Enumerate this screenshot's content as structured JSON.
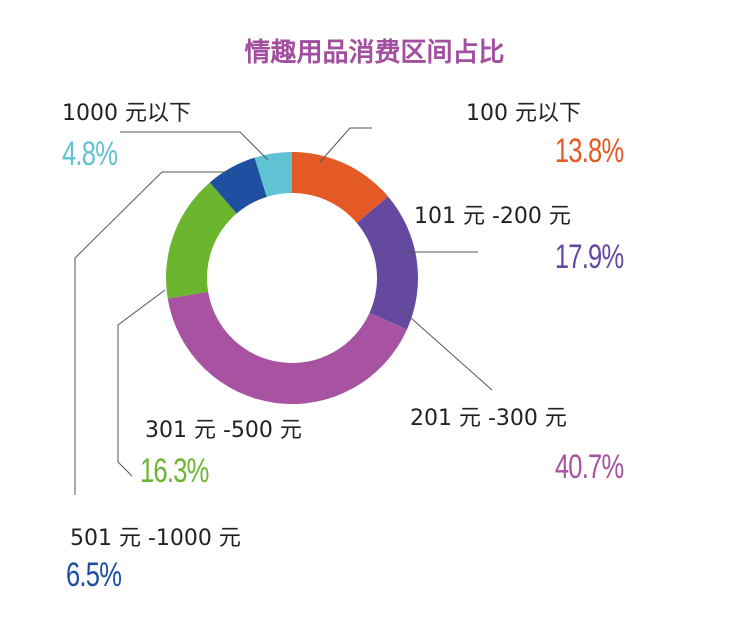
{
  "chart_data": {
    "type": "pie",
    "variant": "donut",
    "title": "情趣用品消费区间占比",
    "categories": [
      "100元以下",
      "101元-200元",
      "201元-300元",
      "301元-500元",
      "501元-1000元",
      "1000元以下"
    ],
    "labels": [
      "100 元以下",
      "101 元 -200 元",
      "201 元 -300 元",
      "301 元 -500 元",
      "501 元 -1000 元",
      "1000 元以下"
    ],
    "values": [
      13.8,
      17.9,
      40.7,
      16.3,
      6.5,
      4.8
    ],
    "value_labels": [
      "13.8%",
      "17.9%",
      "40.7%",
      "16.3%",
      "6.5%",
      "4.8%"
    ],
    "colors": [
      "#e35a27",
      "#6549a0",
      "#a852a2",
      "#6bb52f",
      "#1f4fa0",
      "#5fc3d3"
    ],
    "legend": "none"
  }
}
